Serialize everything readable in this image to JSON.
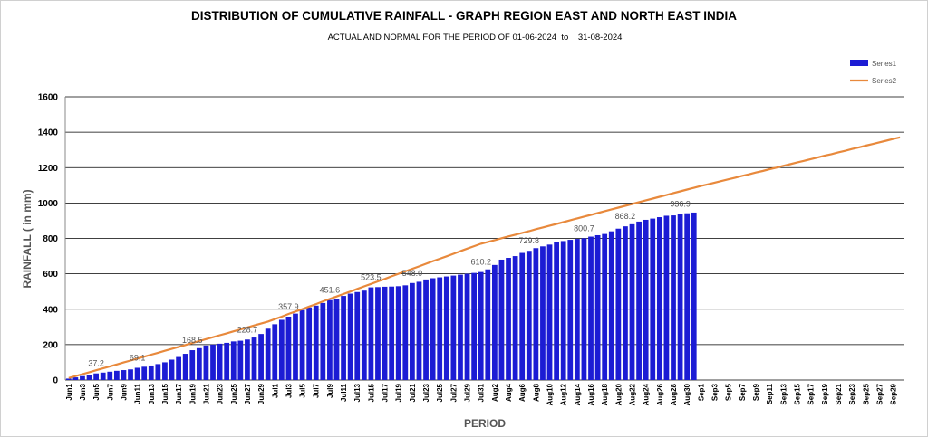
{
  "chart_data": {
    "type": "bar-line",
    "title": "DISTRIBUTION OF CUMULATIVE RAINFALL - GRAPH REGION EAST AND NORTH EAST INDIA",
    "subtitle": "ACTUAL AND NORMAL FOR THE PERIOD OF 01-06-2024  to    31-08-2024",
    "x_label": "PERIOD",
    "y_label": "RAINFALL ( in mm)",
    "categories": [
      "Jun1",
      null,
      "Jun3",
      null,
      "Jun5",
      null,
      "Jun7",
      null,
      "Jun9",
      null,
      "Jun11",
      null,
      "Jun13",
      null,
      "Jun15",
      null,
      "Jun17",
      null,
      "Jun19",
      null,
      "Jun21",
      null,
      "Jun23",
      null,
      "Jun25",
      null,
      "Jun27",
      null,
      "Jun29",
      null,
      "Jul1",
      null,
      "Jul3",
      null,
      "Jul5",
      null,
      "Jul7",
      null,
      "Jul9",
      null,
      "Jul11",
      null,
      "Jul13",
      null,
      "Jul15",
      null,
      "Jul17",
      null,
      "Jul19",
      null,
      "Jul21",
      null,
      "Jul23",
      null,
      "Jul25",
      null,
      "Jul27",
      null,
      "Jul29",
      null,
      "Jul31",
      null,
      "Aug2",
      null,
      "Aug4",
      null,
      "Aug6",
      null,
      "Aug8",
      null,
      "Aug10",
      null,
      "Aug12",
      null,
      "Aug14",
      null,
      "Aug16",
      null,
      "Aug18",
      null,
      "Aug20",
      null,
      "Aug22",
      null,
      "Aug24",
      null,
      "Aug26",
      null,
      "Aug28",
      null,
      "Aug30",
      null,
      "Sep1",
      null,
      "Sep3",
      null,
      "Sep5",
      null,
      "Sep7",
      null,
      "Sep9",
      null,
      "Sep11",
      null,
      "Sep13",
      null,
      "Sep15",
      null,
      "Sep17",
      null,
      "Sep19",
      null,
      "Sep21",
      null,
      "Sep23",
      null,
      "Sep25",
      null,
      "Sep27",
      null,
      "Sep29",
      null
    ],
    "series": [
      {
        "name": "Series1",
        "kind": "bar",
        "color": "#1c1cd4",
        "values": [
          8,
          15,
          22,
          28,
          37.2,
          42,
          47,
          52,
          56,
          60,
          69.1,
          75,
          82,
          90,
          100,
          115,
          130,
          148,
          168.5,
          180,
          195,
          200,
          205,
          210,
          218,
          222,
          228.7,
          240,
          260,
          290,
          315,
          340,
          357.9,
          375,
          395,
          410,
          420,
          435,
          451.6,
          460,
          475,
          488,
          497,
          505,
          523.5,
          525,
          527,
          528,
          530,
          535,
          548.0,
          555,
          568,
          575,
          580,
          585,
          590,
          595,
          600,
          605,
          610.2,
          625,
          650,
          680,
          690,
          700,
          718,
          729.8,
          745,
          755,
          765,
          778,
          785,
          792,
          797,
          800.7,
          810,
          818,
          825,
          840,
          855,
          868.2,
          880,
          895,
          905,
          912,
          920,
          928,
          930,
          936.9,
          942,
          946,
          null,
          null,
          null,
          null,
          null,
          null,
          null,
          null,
          null,
          null,
          null,
          null,
          null,
          null,
          null,
          null,
          null,
          null,
          null,
          null,
          null,
          null,
          null,
          null,
          null,
          null,
          null,
          null,
          null,
          null
        ],
        "value_labels": [
          null,
          null,
          null,
          null,
          "37.2",
          null,
          null,
          null,
          null,
          null,
          "69.1",
          null,
          null,
          null,
          null,
          null,
          null,
          null,
          "168.5",
          null,
          null,
          null,
          null,
          null,
          null,
          null,
          "228.7",
          null,
          null,
          null,
          null,
          null,
          "357.9",
          null,
          null,
          null,
          null,
          null,
          "451.6",
          null,
          null,
          null,
          null,
          null,
          "523.5",
          null,
          null,
          null,
          null,
          null,
          "548.0",
          null,
          null,
          null,
          null,
          null,
          null,
          null,
          null,
          null,
          "610.2",
          null,
          null,
          null,
          null,
          null,
          null,
          "729.8",
          null,
          null,
          null,
          null,
          null,
          null,
          null,
          "800.7",
          null,
          null,
          null,
          null,
          null,
          "868.2",
          null,
          null,
          null,
          null,
          null,
          null,
          null,
          "936.9",
          null,
          null,
          null,
          null,
          null,
          null,
          null,
          null,
          null,
          null,
          null,
          null,
          null,
          null,
          null,
          null,
          null,
          null,
          null,
          null,
          null,
          null,
          null,
          null,
          null,
          null,
          null,
          null,
          null,
          null,
          null,
          null
        ]
      },
      {
        "name": "Series2",
        "kind": "line",
        "color": "#e8893c",
        "values": [
          11,
          22,
          33,
          44,
          55,
          66,
          77,
          88,
          99,
          110,
          121,
          132,
          143,
          154,
          165,
          176,
          187,
          198,
          209,
          220,
          231,
          242,
          253,
          264,
          275,
          286,
          297,
          308,
          319,
          330,
          344,
          358,
          373,
          387,
          401,
          415,
          429,
          444,
          458,
          472,
          486,
          500,
          515,
          529,
          543,
          557,
          571,
          586,
          600,
          614,
          628,
          642,
          657,
          671,
          685,
          699,
          713,
          728,
          742,
          756,
          770,
          780,
          790,
          801,
          811,
          821,
          831,
          841,
          852,
          862,
          872,
          882,
          892,
          903,
          913,
          923,
          933,
          943,
          954,
          964,
          974,
          984,
          994,
          1005,
          1015,
          1025,
          1035,
          1045,
          1056,
          1066,
          1076,
          1086,
          1096,
          1105,
          1115,
          1124,
          1134,
          1143,
          1153,
          1162,
          1172,
          1181,
          1191,
          1200,
          1210,
          1219,
          1229,
          1238,
          1248,
          1257,
          1267,
          1276,
          1286,
          1295,
          1305,
          1314,
          1324,
          1333,
          1343,
          1352,
          1362,
          1371
        ]
      }
    ],
    "ylim": [
      0,
      1600
    ],
    "yticks": [
      0,
      200,
      400,
      600,
      800,
      1000,
      1200,
      1400,
      1600
    ],
    "grid": true,
    "legend": "top-right"
  }
}
